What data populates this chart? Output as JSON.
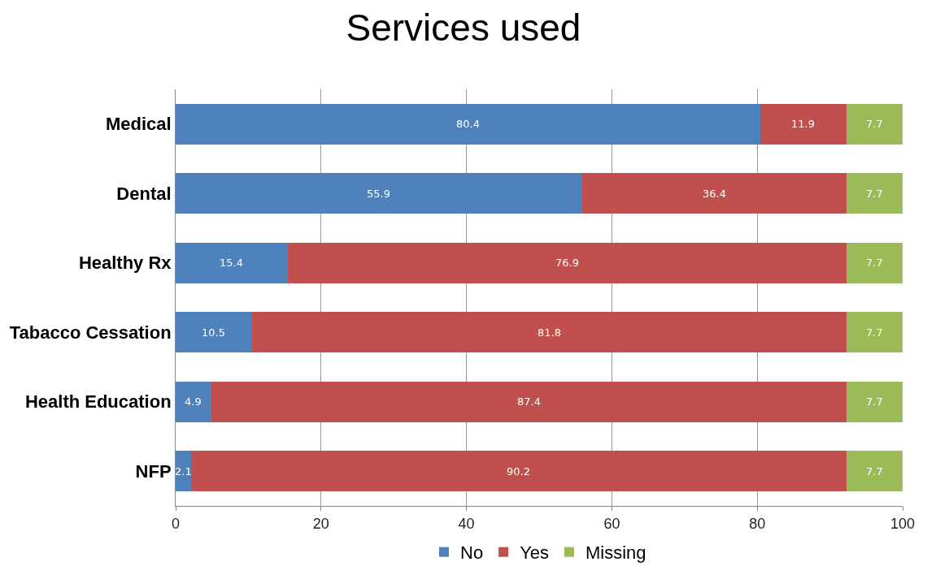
{
  "chart_data": {
    "type": "bar",
    "title": "Services used",
    "orientation": "horizontal",
    "stacked": true,
    "categories": [
      "Medical",
      "Dental",
      "Healthy Rx",
      "Tabacco Cessation",
      "Health Education",
      "NFP"
    ],
    "series": [
      {
        "name": "No",
        "color": "#4f81bd",
        "values": [
          80.4,
          55.9,
          15.4,
          10.5,
          4.9,
          2.1
        ]
      },
      {
        "name": "Yes",
        "color": "#c0504d",
        "values": [
          11.9,
          36.4,
          76.9,
          81.8,
          87.4,
          90.2
        ]
      },
      {
        "name": "Missing",
        "color": "#9bbb59",
        "values": [
          7.7,
          7.7,
          7.7,
          7.7,
          7.7,
          7.7
        ]
      }
    ],
    "xlim": [
      0,
      100
    ],
    "xticks": [
      0,
      20,
      40,
      60,
      80,
      100
    ],
    "grid": "x",
    "legend": "bottom",
    "data_labels": true
  }
}
